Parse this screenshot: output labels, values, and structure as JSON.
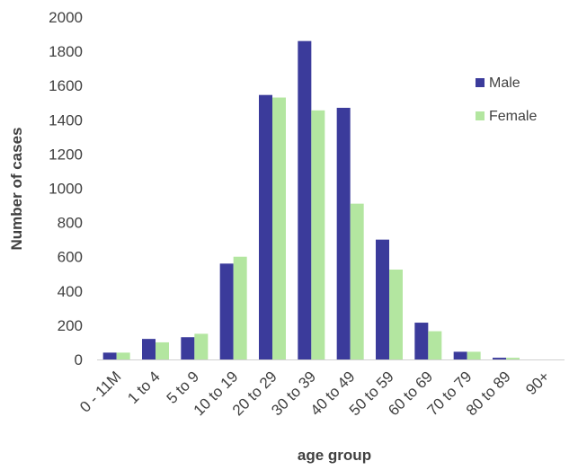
{
  "chart_data": {
    "type": "bar",
    "title": "",
    "xlabel": "age group",
    "ylabel": "Number of cases",
    "ylim": [
      0,
      2000
    ],
    "yticks": [
      0,
      200,
      400,
      600,
      800,
      1000,
      1200,
      1400,
      1600,
      1800,
      2000
    ],
    "ytick_labels": [
      "0",
      "200",
      "400",
      "600",
      "800",
      "1000",
      "1200",
      "1400",
      "1600",
      "1800",
      "2000"
    ],
    "categories": [
      "0 - 11M",
      "1 to 4",
      "5 to 9",
      "10 to 19",
      "20 to 29",
      "30 to 39",
      "40 to 49",
      "50 to 59",
      "60 to 69",
      "70 to 79",
      "80 to 89",
      "90+"
    ],
    "series": [
      {
        "name": "Male",
        "color": "#3b3b9b",
        "values": [
          40,
          120,
          130,
          560,
          1545,
          1860,
          1470,
          700,
          215,
          45,
          10,
          0
        ]
      },
      {
        "name": "Female",
        "color": "#b3e6a0",
        "values": [
          40,
          100,
          150,
          600,
          1530,
          1455,
          910,
          525,
          165,
          45,
          10,
          0
        ]
      }
    ],
    "grid": false,
    "legend_position": "right"
  }
}
